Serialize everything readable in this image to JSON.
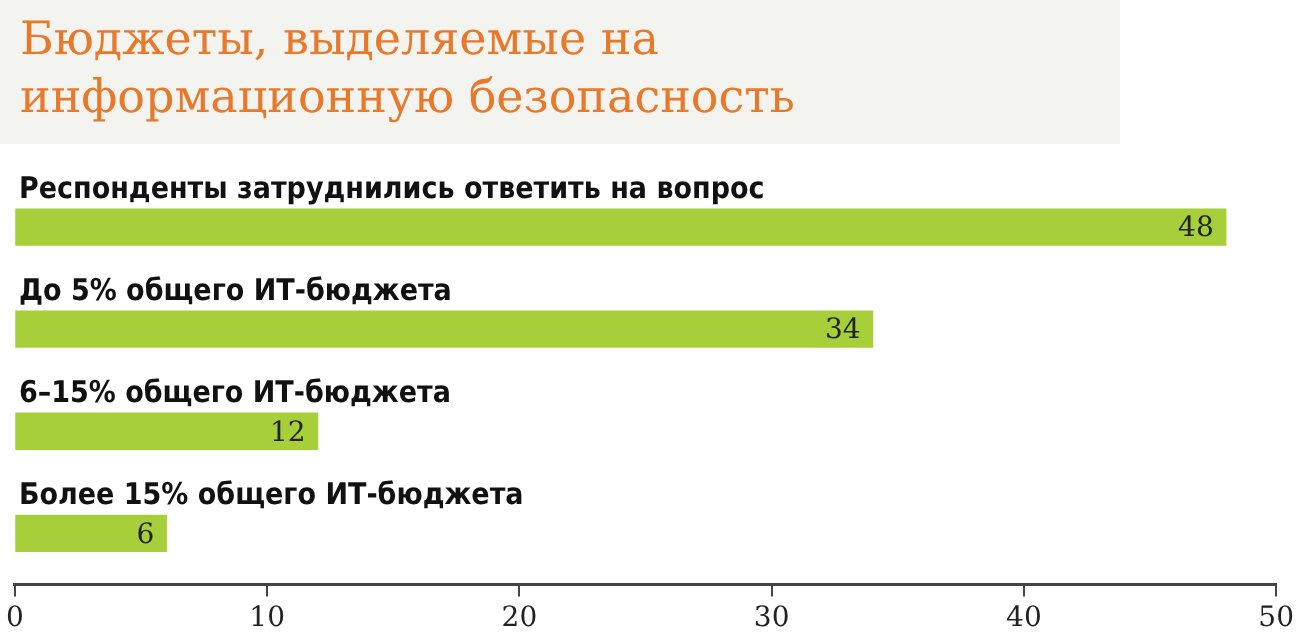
{
  "chart_data": {
    "type": "bar",
    "orientation": "horizontal",
    "title": "Бюджеты, выделяемые на информационную безопасность",
    "categories": [
      "Респонденты затруднились ответить на вопрос",
      "До 5% общего ИТ-бюджета",
      "6–15% общего ИТ-бюджета",
      "Более 15% общего ИТ-бюджета"
    ],
    "values": [
      48,
      34,
      12,
      6
    ],
    "color": "#a6cf3a",
    "data_labels": true,
    "xlim": [
      0,
      50
    ],
    "xticks": [
      0,
      10,
      20,
      30,
      40,
      50
    ],
    "grid": false,
    "legend": false
  }
}
